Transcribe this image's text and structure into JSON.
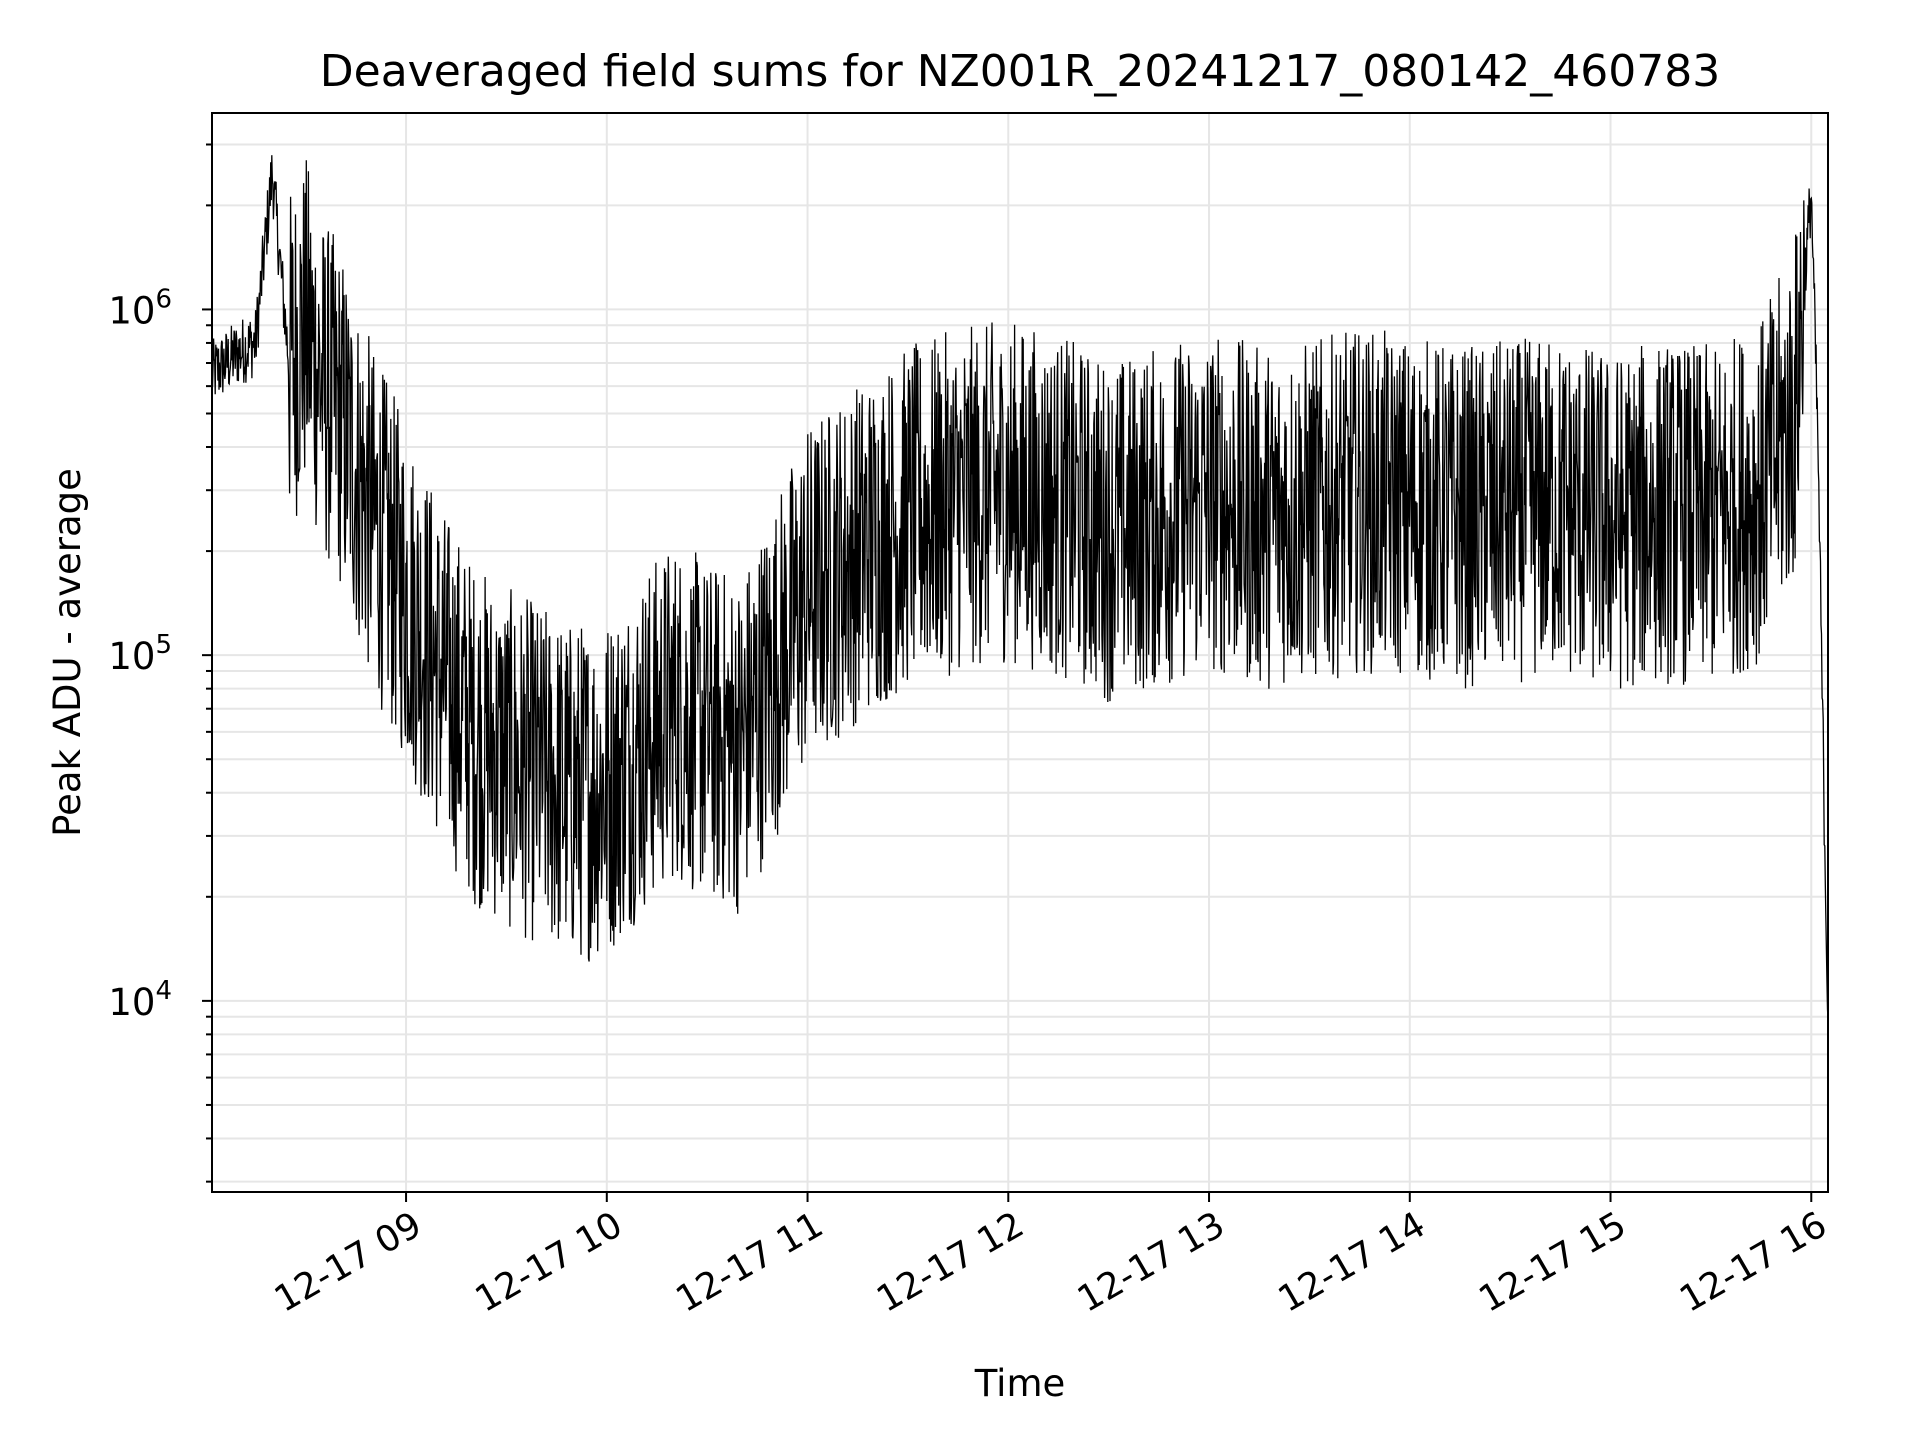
{
  "chart_data": {
    "type": "line",
    "title": "Deaveraged field sums for NZ001R_20241217_080142_460783",
    "xlabel": "Time",
    "ylabel": "Peak ADU - average",
    "yscale": "log",
    "ylim": [
      2800,
      3700000
    ],
    "xlim": [
      "2024-12-17T08:02:00",
      "2024-12-17T16:05:00"
    ],
    "grid": true,
    "line_color": "#000000",
    "grid_color": "#e6e6e6",
    "x_ticks": [
      {
        "value": "2024-12-17T09:00:00",
        "label": "12-17 09"
      },
      {
        "value": "2024-12-17T10:00:00",
        "label": "12-17 10"
      },
      {
        "value": "2024-12-17T11:00:00",
        "label": "12-17 11"
      },
      {
        "value": "2024-12-17T12:00:00",
        "label": "12-17 12"
      },
      {
        "value": "2024-12-17T13:00:00",
        "label": "12-17 13"
      },
      {
        "value": "2024-12-17T14:00:00",
        "label": "12-17 14"
      },
      {
        "value": "2024-12-17T15:00:00",
        "label": "12-17 15"
      },
      {
        "value": "2024-12-17T16:00:00",
        "label": "12-17 16"
      }
    ],
    "y_ticks": [
      {
        "value": 10000,
        "base": "10",
        "exp": "4"
      },
      {
        "value": 100000,
        "base": "10",
        "exp": "5"
      },
      {
        "value": 1000000,
        "base": "10",
        "exp": "6"
      }
    ],
    "series": [
      {
        "x": [
          "2024-12-17T08:02:00",
          "2024-12-17T08:10:00",
          "2024-12-17T08:15:00",
          "2024-12-17T08:20:00",
          "2024-12-17T08:25:00",
          "2024-12-17T08:30:00",
          "2024-12-17T08:35:00",
          "2024-12-17T08:40:00",
          "2024-12-17T08:45:00",
          "2024-12-17T08:50:00",
          "2024-12-17T09:00:00",
          "2024-12-17T09:10:00",
          "2024-12-17T09:20:00",
          "2024-12-17T09:30:00",
          "2024-12-17T09:40:00",
          "2024-12-17T09:50:00",
          "2024-12-17T10:00:00",
          "2024-12-17T10:10:00",
          "2024-12-17T10:20:00",
          "2024-12-17T10:30:00",
          "2024-12-17T10:40:00",
          "2024-12-17T10:50:00",
          "2024-12-17T11:00:00",
          "2024-12-17T11:15:00",
          "2024-12-17T11:30:00",
          "2024-12-17T11:45:00",
          "2024-12-17T12:00:00",
          "2024-12-17T12:15:00",
          "2024-12-17T12:30:00",
          "2024-12-17T12:45:00",
          "2024-12-17T13:00:00",
          "2024-12-17T13:15:00",
          "2024-12-17T13:30:00",
          "2024-12-17T13:45:00",
          "2024-12-17T14:00:00",
          "2024-12-17T14:15:00",
          "2024-12-17T14:30:00",
          "2024-12-17T14:45:00",
          "2024-12-17T15:00:00",
          "2024-12-17T15:15:00",
          "2024-12-17T15:30:00",
          "2024-12-17T15:45:00",
          "2024-12-17T15:55:00",
          "2024-12-17T16:00:00",
          "2024-12-17T16:02:00",
          "2024-12-17T16:04:00",
          "2024-12-17T16:05:00"
        ],
        "y": [
          650000,
          750000,
          800000,
          2500000,
          700000,
          900000,
          600000,
          500000,
          350000,
          250000,
          150000,
          90000,
          60000,
          50000,
          45000,
          40000,
          42000,
          55000,
          70000,
          60000,
          55000,
          90000,
          150000,
          200000,
          250000,
          280000,
          300000,
          270000,
          230000,
          250000,
          280000,
          250000,
          260000,
          280000,
          270000,
          250000,
          260000,
          270000,
          240000,
          260000,
          250000,
          300000,
          500000,
          2200000,
          400000,
          30000,
          9000
        ]
      }
    ]
  }
}
